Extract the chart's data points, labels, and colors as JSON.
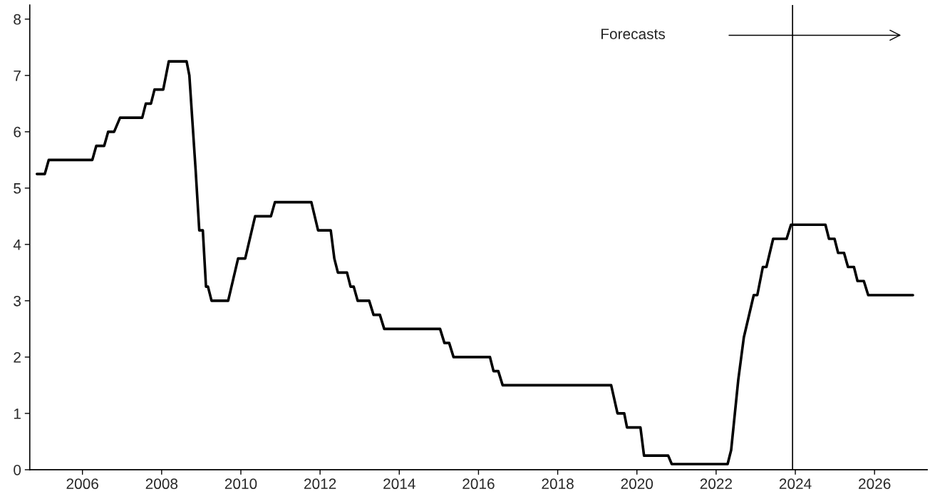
{
  "chart_data": {
    "type": "line",
    "xlim": [
      2004.67,
      2027.33
    ],
    "xticks": [
      2006,
      2008,
      2010,
      2012,
      2014,
      2016,
      2018,
      2020,
      2022,
      2024,
      2026
    ],
    "ylim": [
      0,
      8.25
    ],
    "yticks": [
      0,
      1,
      2,
      3,
      4,
      5,
      6,
      7,
      8
    ],
    "grid": false,
    "legend": false,
    "marker": "none",
    "line_style": "solid",
    "x": [
      2004.85,
      2005.05,
      2005.15,
      2006.25,
      2006.35,
      2006.55,
      2006.65,
      2006.8,
      2006.95,
      2007.51,
      2007.6,
      2007.73,
      2007.82,
      2008.04,
      2008.18,
      2008.63,
      2008.7,
      2008.86,
      2008.95,
      2009.04,
      2009.12,
      2009.17,
      2009.26,
      2009.68,
      2009.93,
      2010.11,
      2010.36,
      2010.76,
      2010.86,
      2011.78,
      2011.95,
      2012.27,
      2012.36,
      2012.45,
      2012.68,
      2012.77,
      2012.85,
      2012.95,
      2013.24,
      2013.35,
      2013.51,
      2013.62,
      2015.03,
      2015.14,
      2015.26,
      2015.37,
      2016.29,
      2016.38,
      2016.5,
      2016.61,
      2019.35,
      2019.51,
      2019.68,
      2019.75,
      2020.09,
      2020.18,
      2020.79,
      2020.88,
      2022.29,
      2022.38,
      2022.56,
      2022.7,
      2022.95,
      2023.04,
      2023.18,
      2023.27,
      2023.44,
      2023.78,
      2023.89,
      2024.76,
      2024.85,
      2024.99,
      2025.08,
      2025.23,
      2025.33,
      2025.48,
      2025.57,
      2025.73,
      2025.84,
      2026.97
    ],
    "series": [
      {
        "color": "#000000",
        "values": [
          5.25,
          5.25,
          5.5,
          5.5,
          5.75,
          5.75,
          6.0,
          6.0,
          6.25,
          6.25,
          6.5,
          6.5,
          6.75,
          6.75,
          7.25,
          7.25,
          7.0,
          5.3,
          4.25,
          4.25,
          3.25,
          3.25,
          3.0,
          3.0,
          3.75,
          3.75,
          4.5,
          4.5,
          4.75,
          4.75,
          4.25,
          4.25,
          3.75,
          3.5,
          3.5,
          3.25,
          3.25,
          3.0,
          3.0,
          2.75,
          2.75,
          2.5,
          2.5,
          2.25,
          2.25,
          2.0,
          2.0,
          1.75,
          1.75,
          1.5,
          1.5,
          1.0,
          1.0,
          0.75,
          0.75,
          0.25,
          0.25,
          0.1,
          0.1,
          0.35,
          1.6,
          2.35,
          3.1,
          3.1,
          3.6,
          3.6,
          4.1,
          4.1,
          4.35,
          4.35,
          4.1,
          4.1,
          3.85,
          3.85,
          3.6,
          3.6,
          3.35,
          3.35,
          3.1,
          3.1
        ]
      }
    ],
    "ref_lines": [
      {
        "axis": "x",
        "value": 2023.93,
        "color": "#000000"
      }
    ],
    "annotations": [
      "Forecasts"
    ]
  }
}
